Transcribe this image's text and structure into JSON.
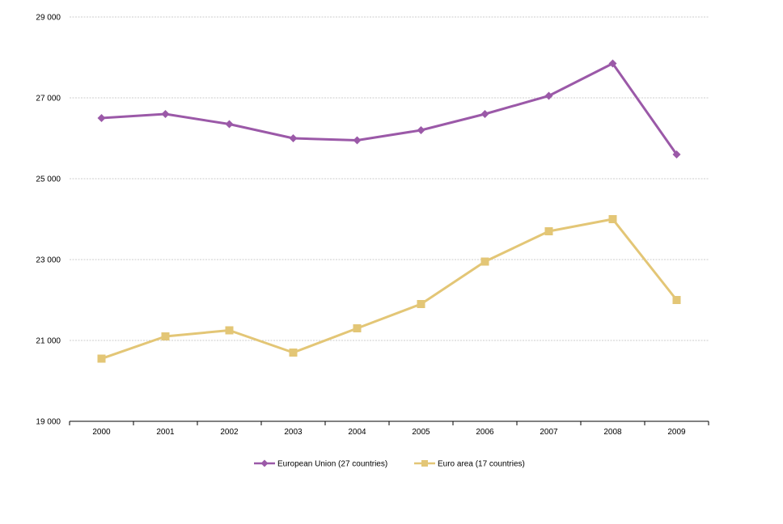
{
  "chart_data": {
    "type": "line",
    "categories": [
      "2000",
      "2001",
      "2002",
      "2003",
      "2004",
      "2005",
      "2006",
      "2007",
      "2008",
      "2009"
    ],
    "ylim": [
      19000,
      29000
    ],
    "yticks": [
      19000,
      21000,
      23000,
      25000,
      27000,
      29000
    ],
    "ytick_labels": [
      "19 000",
      "21 000",
      "23 000",
      "25 000",
      "27 000",
      "29 000"
    ],
    "grid": true,
    "legend_position": "bottom",
    "series": [
      {
        "name": "European Union (27 countries)",
        "color": "#9B59A8",
        "marker": "diamond",
        "values": [
          26500,
          26600,
          26350,
          26000,
          25950,
          26200,
          26600,
          27050,
          27850,
          25600
        ]
      },
      {
        "name": "Euro area (17 countries)",
        "color": "#E3C676",
        "marker": "square",
        "values": [
          20550,
          21100,
          21250,
          20700,
          21300,
          21900,
          22950,
          23700,
          24000,
          22000
        ]
      }
    ]
  }
}
